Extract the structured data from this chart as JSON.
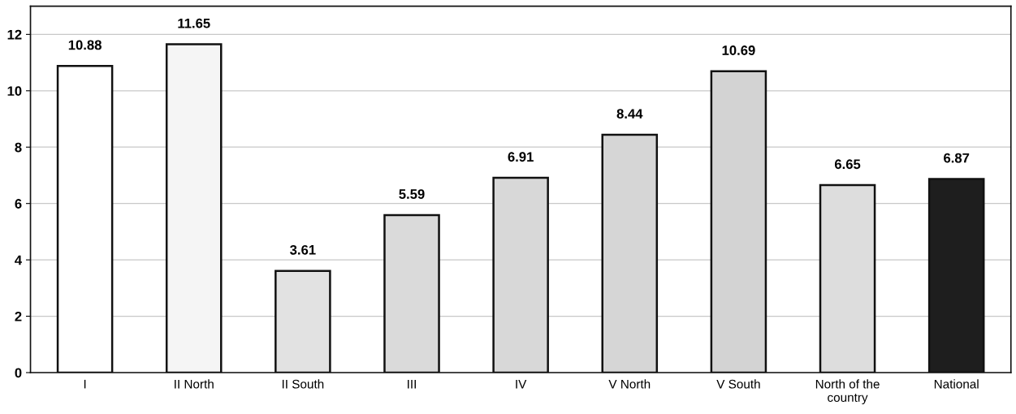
{
  "chart_data": {
    "type": "bar",
    "categories": [
      "I",
      "II North",
      "II South",
      "III",
      "IV",
      "V North",
      "V South",
      "North of the country",
      "National"
    ],
    "values": [
      10.88,
      11.65,
      3.61,
      5.59,
      6.91,
      8.44,
      10.69,
      6.65,
      6.87
    ],
    "colors": [
      "#ffffff",
      "#f5f5f5",
      "#e2e2e2",
      "#dadada",
      "#d8d8d8",
      "#d6d6d6",
      "#d3d3d3",
      "#dddddd",
      "#1e1e1e"
    ],
    "ylim": [
      0,
      13
    ],
    "yticks": [
      0,
      2,
      4,
      6,
      8,
      10,
      12
    ],
    "grid": "y",
    "data_labels": true
  }
}
